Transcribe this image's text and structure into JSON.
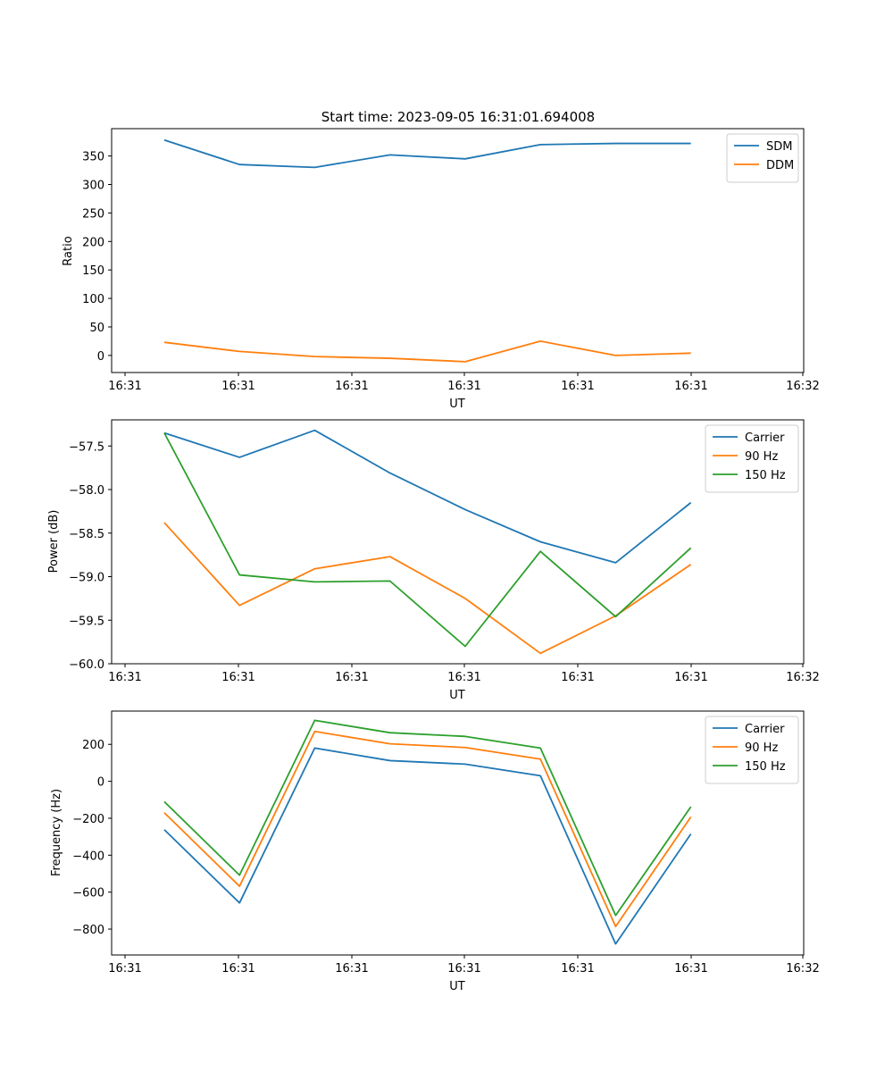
{
  "chart_data": [
    {
      "type": "line",
      "title": "Start time: 2023-09-05 16:31:01.694008",
      "xlabel": "UT",
      "ylabel": "Ratio",
      "x_tick_labels": [
        "16:31",
        "16:31",
        "16:31",
        "16:31",
        "16:31",
        "16:31",
        "16:32"
      ],
      "x": [
        1,
        2,
        3,
        4,
        5,
        6,
        7,
        8
      ],
      "xlim": [
        0.3,
        9.5
      ],
      "ylim": [
        -30,
        398
      ],
      "yticks": [
        0,
        50,
        100,
        150,
        200,
        250,
        300,
        350
      ],
      "ytick_labels": [
        "0",
        "50",
        "100",
        "150",
        "200",
        "250",
        "300",
        "350"
      ],
      "legend": "top-right",
      "series": [
        {
          "name": "SDM",
          "color": "#1f77b4",
          "values": [
            378,
            335,
            330,
            352,
            345,
            370,
            372,
            372
          ]
        },
        {
          "name": "DDM",
          "color": "#ff7f0e",
          "values": [
            23,
            7,
            -2,
            -5,
            -11,
            25,
            0,
            4
          ]
        }
      ]
    },
    {
      "type": "line",
      "title": "",
      "xlabel": "UT",
      "ylabel": "Power (dB)",
      "x_tick_labels": [
        "16:31",
        "16:31",
        "16:31",
        "16:31",
        "16:31",
        "16:31",
        "16:32"
      ],
      "x": [
        1,
        2,
        3,
        4,
        5,
        6,
        7,
        8
      ],
      "xlim": [
        0.3,
        9.5
      ],
      "ylim": [
        -60.0,
        -57.2
      ],
      "yticks": [
        -60.0,
        -59.5,
        -59.0,
        -58.5,
        -58.0,
        -57.5
      ],
      "ytick_labels": [
        "−60.0",
        "−59.5",
        "−59.0",
        "−58.5",
        "−58.0",
        "−57.5"
      ],
      "legend": "top-right",
      "series": [
        {
          "name": "Carrier",
          "color": "#1f77b4",
          "values": [
            -57.35,
            -57.63,
            -57.32,
            -57.81,
            -58.23,
            -58.6,
            -58.84,
            -58.15
          ]
        },
        {
          "name": "90 Hz",
          "color": "#ff7f0e",
          "values": [
            -58.38,
            -59.33,
            -58.91,
            -58.77,
            -59.25,
            -59.88,
            -59.45,
            -58.86
          ]
        },
        {
          "name": "150 Hz",
          "color": "#2ca02c",
          "values": [
            -57.35,
            -58.98,
            -59.06,
            -59.05,
            -59.8,
            -58.71,
            -59.46,
            -58.67
          ]
        }
      ]
    },
    {
      "type": "line",
      "title": "",
      "xlabel": "UT",
      "ylabel": "Frequency (Hz)",
      "x_tick_labels": [
        "16:31",
        "16:31",
        "16:31",
        "16:31",
        "16:31",
        "16:31",
        "16:32"
      ],
      "x": [
        1,
        2,
        3,
        4,
        5,
        6,
        7,
        8
      ],
      "xlim": [
        0.3,
        9.5
      ],
      "ylim": [
        -940,
        380
      ],
      "yticks": [
        -800,
        -600,
        -400,
        -200,
        0,
        200
      ],
      "ytick_labels": [
        "−800",
        "−600",
        "−400",
        "−200",
        "0",
        "200"
      ],
      "legend": "top-right",
      "series": [
        {
          "name": "Carrier",
          "color": "#1f77b4",
          "values": [
            -262,
            -658,
            180,
            112,
            93,
            30,
            -880,
            -285
          ]
        },
        {
          "name": "90 Hz",
          "color": "#ff7f0e",
          "values": [
            -170,
            -568,
            270,
            203,
            183,
            120,
            -786,
            -193
          ]
        },
        {
          "name": "150 Hz",
          "color": "#2ca02c",
          "values": [
            -110,
            -508,
            330,
            263,
            243,
            180,
            -726,
            -138
          ]
        }
      ]
    }
  ]
}
